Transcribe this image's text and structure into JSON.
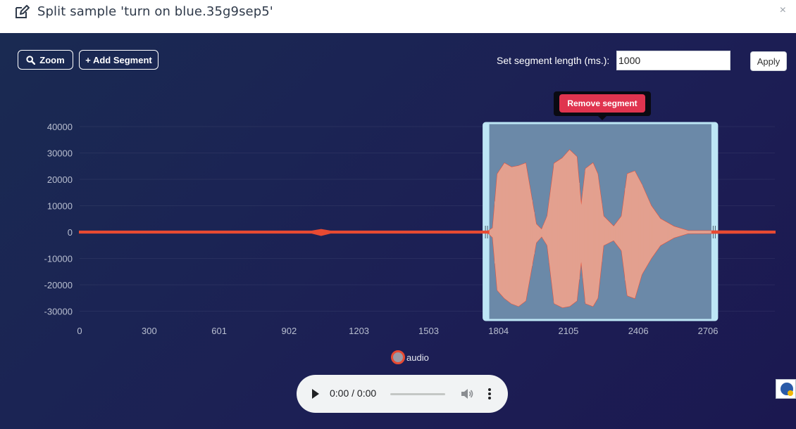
{
  "dialog": {
    "title": "Split sample 'turn on blue.35g9sep5'",
    "close_label": "×"
  },
  "toolbar": {
    "zoom_label": "Zoom",
    "add_segment_label": "+ Add Segment",
    "segment_length_label": "Set segment length (ms.):",
    "segment_length_value": "1000",
    "apply_label": "Apply"
  },
  "segment": {
    "remove_label": "Remove segment",
    "start": 1740,
    "end": 2745
  },
  "legend": {
    "label": "audio"
  },
  "player": {
    "time": "0:00 / 0:00"
  },
  "icons": {
    "title": "edit-icon",
    "zoom": "search-icon",
    "play": "play-icon",
    "volume": "volume-icon",
    "more": "more-vert-icon"
  },
  "colors": {
    "panel_bg": "#1c1f55",
    "waveform": "#e84a32",
    "segment_fill": "#6b89a8",
    "segment_border": "#bde6f5",
    "remove_button": "#e0344f"
  },
  "chart_data": {
    "type": "line",
    "series": [
      {
        "name": "audio"
      }
    ],
    "x_ticks": [
      "0",
      "300",
      "601",
      "902",
      "1203",
      "1503",
      "1804",
      "2105",
      "2406",
      "2706"
    ],
    "y_ticks": [
      "40000",
      "30000",
      "20000",
      "10000",
      "0",
      "-10000",
      "-20000",
      "-30000"
    ],
    "xlim": [
      0,
      2994
    ],
    "ylim": [
      -35000,
      40000
    ],
    "grid": true,
    "legend_position": "bottom-center",
    "envelope": [
      {
        "x": 0,
        "max": 300,
        "min": -300
      },
      {
        "x": 1000,
        "max": 300,
        "min": -300
      },
      {
        "x": 1040,
        "max": 900,
        "min": -1200
      },
      {
        "x": 1080,
        "max": 300,
        "min": -300
      },
      {
        "x": 1760,
        "max": 300,
        "min": -300
      },
      {
        "x": 1780,
        "max": 1500,
        "min": -2000
      },
      {
        "x": 1800,
        "max": 22000,
        "min": -22000
      },
      {
        "x": 1830,
        "max": 26000,
        "min": -25000
      },
      {
        "x": 1860,
        "max": 24500,
        "min": -27000
      },
      {
        "x": 1890,
        "max": 25000,
        "min": -28000
      },
      {
        "x": 1920,
        "max": 26000,
        "min": -26000
      },
      {
        "x": 1965,
        "max": 3000,
        "min": -4000
      },
      {
        "x": 1990,
        "max": 800,
        "min": -1500
      },
      {
        "x": 2015,
        "max": 6000,
        "min": -5000
      },
      {
        "x": 2045,
        "max": 26000,
        "min": -27000
      },
      {
        "x": 2080,
        "max": 28000,
        "min": -28500
      },
      {
        "x": 2110,
        "max": 31000,
        "min": -28000
      },
      {
        "x": 2140,
        "max": 28500,
        "min": -26000
      },
      {
        "x": 2160,
        "max": 9000,
        "min": -10000
      },
      {
        "x": 2180,
        "max": 24000,
        "min": -27000
      },
      {
        "x": 2210,
        "max": 26000,
        "min": -28000
      },
      {
        "x": 2230,
        "max": 22000,
        "min": -25000
      },
      {
        "x": 2255,
        "max": 6000,
        "min": -5000
      },
      {
        "x": 2300,
        "max": 2000,
        "min": -3000
      },
      {
        "x": 2335,
        "max": 6000,
        "min": -7000
      },
      {
        "x": 2360,
        "max": 22000,
        "min": -24000
      },
      {
        "x": 2390,
        "max": 23000,
        "min": -25000
      },
      {
        "x": 2420,
        "max": 18000,
        "min": -16000
      },
      {
        "x": 2460,
        "max": 10000,
        "min": -10000
      },
      {
        "x": 2500,
        "max": 5000,
        "min": -5000
      },
      {
        "x": 2560,
        "max": 2000,
        "min": -2000
      },
      {
        "x": 2620,
        "max": 400,
        "min": -400
      },
      {
        "x": 2994,
        "max": 300,
        "min": -300
      }
    ]
  }
}
